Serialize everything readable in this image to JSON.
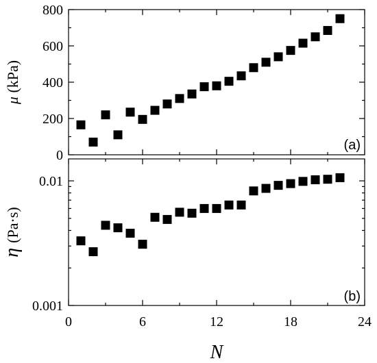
{
  "chart_data": [
    {
      "type": "scatter",
      "panel_label": "(a)",
      "ylabel_symbol": "μ",
      "ylabel_unit": "(kPa)",
      "xlim": [
        0,
        24
      ],
      "ylim": [
        0,
        800
      ],
      "x_ticks": [
        0,
        6,
        12,
        18,
        24
      ],
      "y_ticks": [
        0,
        200,
        400,
        600,
        800
      ],
      "y_tick_labels": [
        "0",
        "200",
        "400",
        "600",
        "800"
      ],
      "y_scale": "linear",
      "grid": false,
      "marker": "filled-square",
      "series": [
        {
          "x": [
            1,
            2,
            3,
            4,
            5,
            6,
            7,
            8,
            9,
            10,
            11,
            12,
            13,
            14,
            15,
            16,
            17,
            18,
            19,
            20,
            21,
            22
          ],
          "y": [
            165,
            70,
            220,
            110,
            235,
            195,
            245,
            280,
            310,
            335,
            375,
            380,
            405,
            435,
            480,
            510,
            540,
            575,
            615,
            650,
            685,
            750
          ]
        }
      ]
    },
    {
      "type": "scatter",
      "panel_label": "(b)",
      "ylabel_symbol": "η",
      "ylabel_unit": "(Pa·s)",
      "xlabel": "N",
      "xlim": [
        0,
        24
      ],
      "ylim": [
        0.001,
        0.015
      ],
      "x_ticks": [
        0,
        6,
        12,
        18,
        24
      ],
      "x_tick_labels": [
        "0",
        "6",
        "12",
        "18",
        "24"
      ],
      "y_ticks": [
        0.001,
        0.01
      ],
      "y_tick_labels": [
        "0.001",
        "0.01"
      ],
      "y_scale": "log",
      "grid": false,
      "marker": "filled-square",
      "series": [
        {
          "x": [
            1,
            2,
            3,
            4,
            5,
            6,
            7,
            8,
            9,
            10,
            11,
            12,
            13,
            14,
            15,
            16,
            17,
            18,
            19,
            20,
            21,
            22
          ],
          "y": [
            0.0033,
            0.0027,
            0.0044,
            0.0042,
            0.0038,
            0.0031,
            0.0051,
            0.0049,
            0.0056,
            0.0055,
            0.006,
            0.006,
            0.0064,
            0.0064,
            0.0083,
            0.0087,
            0.0092,
            0.0095,
            0.0099,
            0.0102,
            0.0103,
            0.0106
          ]
        }
      ]
    }
  ]
}
